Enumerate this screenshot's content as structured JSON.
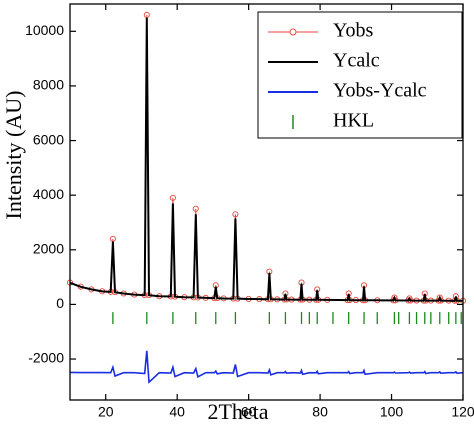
{
  "chart_data": {
    "type": "line",
    "xlabel": "2Theta",
    "ylabel": "Intensity (AU)",
    "xlim": [
      10,
      120
    ],
    "ylim": [
      -3500,
      11000
    ],
    "xticks": [
      20,
      40,
      60,
      80,
      100,
      120
    ],
    "yticks": [
      -2000,
      0,
      2000,
      4000,
      6000,
      8000,
      10000
    ],
    "legend": "upper right",
    "x": [
      10,
      13,
      16,
      19,
      21.4,
      22,
      22.6,
      25,
      28,
      30.9,
      31.5,
      32.1,
      35,
      38.2,
      38.8,
      39.4,
      42,
      44.6,
      45.2,
      45.8,
      48,
      50.4,
      50.8,
      51.2,
      53,
      55.7,
      56.3,
      56.9,
      60,
      63,
      65.4,
      65.8,
      66.2,
      68,
      70,
      70.3,
      70.6,
      72,
      74.5,
      74.8,
      75.1,
      77,
      78.9,
      79.2,
      79.5,
      82,
      87.7,
      88,
      88.3,
      90,
      92,
      92.3,
      92.6,
      96,
      100.5,
      100.8,
      101.1,
      104.7,
      105,
      105.3,
      107,
      109,
      109.3,
      109.6,
      111,
      113.2,
      113.5,
      113.8,
      116,
      117.7,
      118,
      118.3,
      120
    ],
    "series": [
      {
        "name": "Yobs",
        "color": "#e8463c",
        "marker": "circle",
        "values": [
          800,
          650,
          550,
          480,
          460,
          2400,
          450,
          400,
          360,
          340,
          10600,
          340,
          300,
          290,
          3900,
          285,
          265,
          260,
          3500,
          255,
          240,
          230,
          700,
          230,
          220,
          215,
          3300,
          215,
          200,
          195,
          190,
          1200,
          190,
          185,
          180,
          400,
          180,
          178,
          175,
          800,
          175,
          172,
          170,
          550,
          170,
          168,
          160,
          400,
          160,
          158,
          155,
          700,
          155,
          152,
          150,
          250,
          150,
          145,
          220,
          145,
          142,
          140,
          400,
          140,
          140,
          140,
          250,
          140,
          138,
          135,
          300,
          135,
          135
        ]
      },
      {
        "name": "Ycalc",
        "color": "#000000",
        "values": [
          790,
          645,
          548,
          478,
          458,
          2300,
          448,
          398,
          358,
          338,
          10500,
          338,
          298,
          288,
          3700,
          283,
          263,
          258,
          3300,
          253,
          238,
          228,
          650,
          228,
          218,
          213,
          3150,
          213,
          198,
          193,
          188,
          1150,
          188,
          183,
          178,
          380,
          178,
          176,
          173,
          760,
          173,
          170,
          168,
          520,
          168,
          166,
          158,
          380,
          158,
          156,
          153,
          660,
          153,
          150,
          148,
          240,
          148,
          143,
          210,
          143,
          140,
          138,
          380,
          138,
          138,
          138,
          240,
          138,
          136,
          133,
          285,
          133,
          133
        ]
      },
      {
        "name": "Yobs-Ycalc",
        "color": "#1a2fe0",
        "values": [
          -2490,
          -2495,
          -2498,
          -2498,
          -2500,
          -2300,
          -2620,
          -2500,
          -2500,
          -2530,
          -1700,
          -2850,
          -2500,
          -2510,
          -2300,
          -2640,
          -2500,
          -2510,
          -2350,
          -2650,
          -2500,
          -2500,
          -2440,
          -2540,
          -2500,
          -2510,
          -2200,
          -2640,
          -2500,
          -2500,
          -2510,
          -2400,
          -2580,
          -2500,
          -2500,
          -2460,
          -2520,
          -2500,
          -2510,
          -2420,
          -2560,
          -2500,
          -2505,
          -2450,
          -2540,
          -2500,
          -2500,
          -2460,
          -2530,
          -2500,
          -2500,
          -2420,
          -2560,
          -2500,
          -2500,
          -2480,
          -2510,
          -2500,
          -2480,
          -2510,
          -2500,
          -2500,
          -2460,
          -2530,
          -2500,
          -2500,
          -2470,
          -2520,
          -2500,
          -2500,
          -2470,
          -2520,
          -2500
        ]
      },
      {
        "name": "HKL",
        "color": "#1a8a1a",
        "marker": "vline",
        "x": [
          22,
          31.5,
          38.8,
          45.2,
          50.8,
          56.3,
          65.8,
          70.3,
          74.8,
          77,
          79.2,
          83.6,
          88,
          92.3,
          96,
          100.8,
          102,
          105,
          107,
          109.3,
          111,
          113.5,
          116,
          118,
          119.5
        ],
        "values": [
          -500,
          -500,
          -500,
          -500,
          -500,
          -500,
          -500,
          -500,
          -500,
          -500,
          -500,
          -500,
          -500,
          -500,
          -500,
          -500,
          -500,
          -500,
          -500,
          -500,
          -500,
          -500,
          -500,
          -500,
          -500
        ]
      }
    ]
  }
}
